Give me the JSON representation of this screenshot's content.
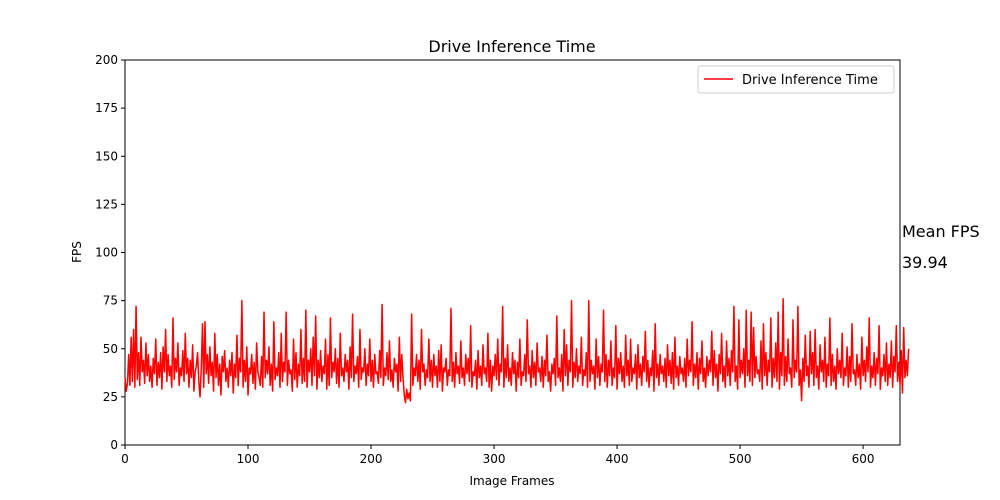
{
  "chart_data": {
    "type": "line",
    "title": "Drive Inference Time",
    "xlabel": "Image Frames",
    "ylabel": "FPS",
    "xlim": [
      0,
      630
    ],
    "ylim": [
      0,
      200
    ],
    "xticks": [
      0,
      100,
      200,
      300,
      400,
      500,
      600
    ],
    "yticks": [
      0,
      25,
      50,
      75,
      100,
      125,
      150,
      175,
      200
    ],
    "grid": false,
    "legend": {
      "position": "top-right"
    },
    "series": [
      {
        "name": "Drive Inference Time",
        "color": "#ff0000",
        "x_start": 0,
        "x_step": 1,
        "values": [
          35,
          28,
          32,
          47,
          31,
          56,
          33,
          60,
          30,
          72,
          34,
          48,
          31,
          56,
          38,
          44,
          32,
          53,
          36,
          47,
          33,
          41,
          30,
          45,
          37,
          55,
          31,
          43,
          35,
          48,
          29,
          51,
          38,
          60,
          33,
          47,
          36,
          41,
          30,
          66,
          34,
          45,
          38,
          53,
          31,
          40,
          36,
          49,
          33,
          58,
          37,
          45,
          30,
          44,
          35,
          52,
          28,
          38,
          41,
          48,
          33,
          25,
          40,
          63,
          30,
          64,
          37,
          47,
          32,
          51,
          36,
          43,
          28,
          58,
          35,
          47,
          31,
          42,
          26,
          46,
          38,
          49,
          33,
          40,
          30,
          44,
          36,
          48,
          27,
          42,
          35,
          57,
          31,
          45,
          38,
          75,
          30,
          44,
          33,
          51,
          26,
          40,
          37,
          47,
          32,
          43,
          29,
          53,
          38,
          35,
          31,
          46,
          30,
          69,
          35,
          44,
          37,
          51,
          31,
          42,
          28,
          64,
          34,
          40,
          36,
          48,
          30,
          58,
          33,
          43,
          38,
          69,
          31,
          44,
          37,
          39,
          28,
          55,
          34,
          48,
          30,
          42,
          36,
          60,
          32,
          45,
          33,
          70,
          30,
          44,
          38,
          50,
          31,
          56,
          36,
          67,
          29,
          44,
          35,
          49,
          33,
          41,
          37,
          55,
          29,
          47,
          31,
          66,
          35,
          43,
          38,
          50,
          32,
          45,
          30,
          58,
          36,
          40,
          33,
          47,
          38,
          44,
          29,
          51,
          35,
          68,
          33,
          41,
          37,
          46,
          30,
          60,
          34,
          40,
          38,
          50,
          31,
          42,
          36,
          55,
          33,
          44,
          30,
          47,
          37,
          38,
          32,
          49,
          35,
          73,
          31,
          40,
          36,
          48,
          34,
          54,
          33,
          39,
          30,
          45,
          38,
          42,
          28,
          56,
          33,
          47,
          35,
          26,
          22,
          29,
          24,
          27,
          23,
          68,
          31,
          40,
          36,
          47,
          33,
          44,
          29,
          60,
          38,
          42,
          31,
          39,
          35,
          55,
          33,
          44,
          30,
          47,
          36,
          41,
          30,
          49,
          33,
          52,
          28,
          40,
          38,
          45,
          31,
          39,
          36,
          71,
          33,
          43,
          30,
          48,
          37,
          41,
          32,
          54,
          35,
          40,
          31,
          47,
          37,
          45,
          33,
          62,
          30,
          38,
          36,
          44,
          29,
          49,
          35,
          41,
          31,
          52,
          37,
          40,
          33,
          58,
          30,
          44,
          28,
          41,
          36,
          47,
          34,
          55,
          31,
          42,
          38,
          72,
          30,
          45,
          35,
          52,
          33,
          40,
          31,
          48,
          37,
          44,
          28,
          43,
          35,
          55,
          31,
          38,
          36,
          47,
          33,
          65,
          37,
          41,
          30,
          49,
          35,
          43,
          31,
          53,
          38,
          40,
          33,
          46,
          30,
          44,
          36,
          57,
          33,
          38,
          28,
          42,
          37,
          45,
          31,
          67,
          35,
          40,
          33,
          47,
          28,
          60,
          36,
          52,
          31,
          44,
          38,
          75,
          30,
          43,
          35,
          50,
          33,
          41,
          37,
          56,
          31,
          39,
          36,
          48,
          30,
          75,
          33,
          44,
          37,
          41,
          29,
          55,
          35,
          46,
          31,
          42,
          38,
          70,
          33,
          47,
          30,
          44,
          36,
          54,
          31,
          40,
          35,
          62,
          29,
          45,
          37,
          48,
          33,
          41,
          30,
          57,
          36,
          44,
          31,
          55,
          33,
          40,
          37,
          47,
          29,
          52,
          35,
          42,
          31,
          46,
          38,
          59,
          33,
          44,
          30,
          40,
          36,
          49,
          28,
          63,
          35,
          42,
          31,
          47,
          37,
          41,
          33,
          45,
          30,
          52,
          36,
          44,
          32,
          48,
          29,
          56,
          35,
          41,
          31,
          46,
          37,
          40,
          33,
          45,
          30,
          55,
          36,
          44,
          38,
          64,
          31,
          42,
          35,
          48,
          29,
          45,
          37,
          54,
          33,
          40,
          30,
          46,
          36,
          44,
          38,
          59,
          31,
          49,
          35,
          42,
          28,
          47,
          37,
          58,
          33,
          41,
          30,
          54,
          36,
          45,
          31,
          49,
          38,
          72,
          33,
          41,
          29,
          65,
          35,
          44,
          37,
          50,
          30,
          70,
          36,
          44,
          33,
          69,
          31,
          61,
          35,
          46,
          37,
          39,
          33,
          54,
          29,
          63,
          36,
          48,
          31,
          44,
          38,
          66,
          30,
          45,
          35,
          53,
          33,
          69,
          29,
          48,
          36,
          76,
          31,
          46,
          33,
          55,
          37,
          40,
          30,
          65,
          35,
          44,
          38,
          72,
          31,
          39,
          23,
          45,
          33,
          57,
          36,
          41,
          30,
          59,
          37,
          48,
          31,
          60,
          35,
          41,
          29,
          52,
          38,
          44,
          33,
          56,
          30,
          42,
          36,
          66,
          31,
          47,
          33,
          41,
          29,
          50,
          37,
          44,
          35,
          58,
          31,
          40,
          36,
          51,
          30,
          46,
          33,
          63,
          37,
          39,
          31,
          47,
          35,
          42,
          29,
          56,
          36,
          44,
          33,
          51,
          38,
          66,
          30,
          41,
          35,
          48,
          31,
          45,
          37,
          62,
          29,
          40,
          36,
          47,
          33,
          53,
          31,
          42,
          35,
          54,
          30,
          46,
          38,
          62,
          33,
          43,
          31,
          49,
          27,
          61,
          35,
          44,
          36,
          50
        ]
      }
    ],
    "annotation": {
      "label": "Mean FPS",
      "value": "39.94"
    }
  }
}
